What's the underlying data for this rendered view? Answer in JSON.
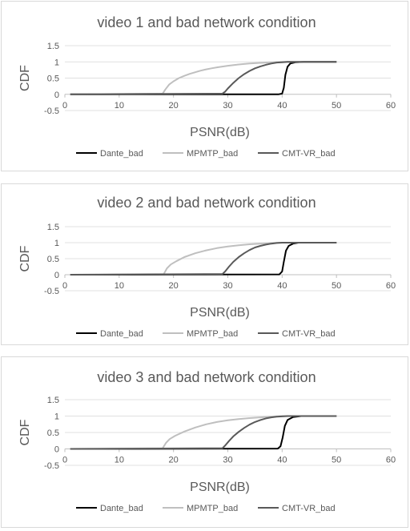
{
  "chart_data": [
    {
      "type": "line",
      "title": "video 1 and bad network condition",
      "xlabel": "PSNR(dB)",
      "ylabel": "CDF",
      "xlim": [
        0,
        60
      ],
      "ylim": [
        -0.5,
        1.5
      ],
      "xticks": [
        0,
        10,
        20,
        30,
        40,
        50,
        60
      ],
      "yticks": [
        1.5,
        1,
        0.5,
        0,
        -0.5
      ],
      "legend_position": "bottom",
      "series": [
        {
          "name": "Dante_bad",
          "color": "#000000",
          "points": [
            [
              1,
              0
            ],
            [
              39.3,
              0
            ],
            [
              40,
              0.02
            ],
            [
              40.3,
              0.2
            ],
            [
              40.6,
              0.6
            ],
            [
              41,
              0.85
            ],
            [
              41.5,
              0.95
            ],
            [
              42.5,
              0.99
            ],
            [
              44,
              1
            ],
            [
              50,
              1
            ]
          ]
        },
        {
          "name": "MPMTP_bad",
          "color": "#bfbfbf",
          "points": [
            [
              1,
              0
            ],
            [
              18,
              0.02
            ],
            [
              18.5,
              0.15
            ],
            [
              19.2,
              0.3
            ],
            [
              20,
              0.4
            ],
            [
              21,
              0.5
            ],
            [
              22,
              0.57
            ],
            [
              23,
              0.63
            ],
            [
              24,
              0.68
            ],
            [
              25,
              0.73
            ],
            [
              26,
              0.77
            ],
            [
              27,
              0.8
            ],
            [
              28,
              0.83
            ],
            [
              30,
              0.88
            ],
            [
              32,
              0.92
            ],
            [
              34,
              0.95
            ],
            [
              36,
              0.97
            ],
            [
              38,
              0.99
            ],
            [
              40,
              1
            ],
            [
              44,
              1
            ],
            [
              50,
              1
            ]
          ]
        },
        {
          "name": "CMT-VR_bad",
          "color": "#595959",
          "points": [
            [
              1,
              0
            ],
            [
              29,
              0.02
            ],
            [
              29.5,
              0.08
            ],
            [
              30,
              0.18
            ],
            [
              31,
              0.35
            ],
            [
              32,
              0.5
            ],
            [
              33,
              0.62
            ],
            [
              34,
              0.72
            ],
            [
              35,
              0.8
            ],
            [
              36,
              0.86
            ],
            [
              37,
              0.91
            ],
            [
              38,
              0.95
            ],
            [
              39,
              0.98
            ],
            [
              40,
              0.99
            ],
            [
              41,
              1
            ],
            [
              44,
              1
            ],
            [
              50,
              1
            ]
          ]
        }
      ]
    },
    {
      "type": "line",
      "title": "video 2 and bad network condition",
      "xlabel": "PSNR(dB)",
      "ylabel": "CDF",
      "xlim": [
        0,
        60
      ],
      "ylim": [
        -0.5,
        1.5
      ],
      "xticks": [
        0,
        10,
        20,
        30,
        40,
        50,
        60
      ],
      "yticks": [
        1.5,
        1,
        0.5,
        0,
        -0.5
      ],
      "legend_position": "bottom",
      "series": [
        {
          "name": "Dante_bad",
          "color": "#000000",
          "points": [
            [
              1,
              0
            ],
            [
              39.5,
              0.01
            ],
            [
              40,
              0.1
            ],
            [
              40.3,
              0.4
            ],
            [
              40.7,
              0.75
            ],
            [
              41.2,
              0.9
            ],
            [
              42,
              0.97
            ],
            [
              43,
              1
            ],
            [
              50,
              1
            ]
          ]
        },
        {
          "name": "MPMTP_bad",
          "color": "#bfbfbf",
          "points": [
            [
              1,
              0
            ],
            [
              18.2,
              0.02
            ],
            [
              18.8,
              0.2
            ],
            [
              19.5,
              0.32
            ],
            [
              20.5,
              0.42
            ],
            [
              22,
              0.55
            ],
            [
              24,
              0.67
            ],
            [
              26,
              0.76
            ],
            [
              28,
              0.83
            ],
            [
              30,
              0.88
            ],
            [
              32,
              0.92
            ],
            [
              34,
              0.95
            ],
            [
              36,
              0.97
            ],
            [
              38,
              0.99
            ],
            [
              40,
              1
            ],
            [
              50,
              1
            ]
          ]
        },
        {
          "name": "CMT-VR_bad",
          "color": "#595959",
          "points": [
            [
              1,
              0
            ],
            [
              29,
              0.02
            ],
            [
              29.5,
              0.1
            ],
            [
              30.2,
              0.25
            ],
            [
              31,
              0.4
            ],
            [
              32,
              0.55
            ],
            [
              33,
              0.67
            ],
            [
              34,
              0.77
            ],
            [
              35,
              0.85
            ],
            [
              36,
              0.9
            ],
            [
              37,
              0.94
            ],
            [
              38,
              0.97
            ],
            [
              39,
              0.99
            ],
            [
              40,
              1
            ],
            [
              50,
              1
            ]
          ]
        }
      ]
    },
    {
      "type": "line",
      "title": "video 3 and bad network condition",
      "xlabel": "PSNR(dB)",
      "ylabel": "CDF",
      "xlim": [
        0,
        60
      ],
      "ylim": [
        -0.5,
        1.5
      ],
      "xticks": [
        0,
        10,
        20,
        30,
        40,
        50,
        60
      ],
      "yticks": [
        1.5,
        1,
        0.5,
        0,
        -0.5
      ],
      "legend_position": "bottom",
      "series": [
        {
          "name": "Dante_bad",
          "color": "#000000",
          "points": [
            [
              1,
              0
            ],
            [
              39.2,
              0.01
            ],
            [
              39.7,
              0.08
            ],
            [
              40.1,
              0.35
            ],
            [
              40.5,
              0.7
            ],
            [
              41,
              0.88
            ],
            [
              42,
              0.97
            ],
            [
              43.5,
              1
            ],
            [
              50,
              1
            ]
          ]
        },
        {
          "name": "MPMTP_bad",
          "color": "#bfbfbf",
          "points": [
            [
              1,
              0
            ],
            [
              18,
              0.02
            ],
            [
              18.6,
              0.18
            ],
            [
              19.3,
              0.3
            ],
            [
              20.3,
              0.4
            ],
            [
              22,
              0.53
            ],
            [
              24,
              0.65
            ],
            [
              26,
              0.75
            ],
            [
              28,
              0.82
            ],
            [
              30,
              0.87
            ],
            [
              32,
              0.91
            ],
            [
              34,
              0.94
            ],
            [
              36,
              0.96
            ],
            [
              38,
              0.98
            ],
            [
              40,
              1
            ],
            [
              50,
              1
            ]
          ]
        },
        {
          "name": "CMT-VR_bad",
          "color": "#595959",
          "points": [
            [
              1,
              0
            ],
            [
              29,
              0.02
            ],
            [
              29.5,
              0.1
            ],
            [
              30.2,
              0.24
            ],
            [
              31,
              0.38
            ],
            [
              32,
              0.52
            ],
            [
              33,
              0.64
            ],
            [
              34,
              0.74
            ],
            [
              35,
              0.82
            ],
            [
              36,
              0.88
            ],
            [
              37,
              0.93
            ],
            [
              38,
              0.96
            ],
            [
              39,
              0.98
            ],
            [
              40,
              0.99
            ],
            [
              41,
              1
            ],
            [
              50,
              1
            ]
          ]
        }
      ]
    }
  ]
}
